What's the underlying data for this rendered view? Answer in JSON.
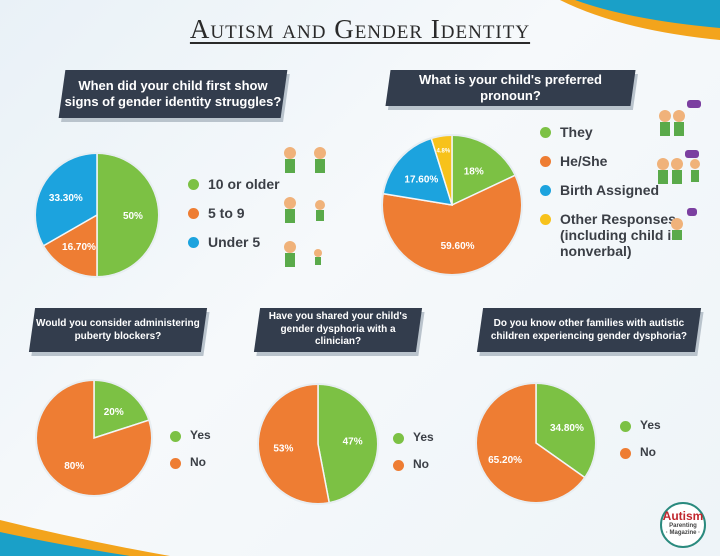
{
  "title": "Autism and Gender Identity",
  "colors": {
    "green": "#7cc144",
    "orange": "#ee7d33",
    "blue": "#1ca3de",
    "yellow": "#f7c21b",
    "banner": "#333d4d"
  },
  "chart_data": [
    {
      "type": "pie",
      "title": "When did your child first show signs of gender identity struggles?",
      "slices": [
        {
          "label": "10 or older",
          "value": 50,
          "text": "50%",
          "color": "#7cc144"
        },
        {
          "label": "5 to 9",
          "value": 16.7,
          "text": "16.70%",
          "color": "#ee7d33"
        },
        {
          "label": "Under 5",
          "value": 33.3,
          "text": "33.30%",
          "color": "#1ca3de"
        }
      ]
    },
    {
      "type": "pie",
      "title": "What is your child's preferred pronoun?",
      "slices": [
        {
          "label": "They",
          "value": 18,
          "text": "18%",
          "color": "#7cc144"
        },
        {
          "label": "He/She",
          "value": 59.6,
          "text": "59.60%",
          "color": "#ee7d33"
        },
        {
          "label": "Birth Assigned",
          "value": 17.6,
          "text": "17.60%",
          "color": "#1ca3de"
        },
        {
          "label": "Other Responses (including child is nonverbal)",
          "value": 4.8,
          "text": "4.8%",
          "color": "#f7c21b"
        }
      ]
    },
    {
      "type": "pie",
      "title": "Would you consider administering puberty blockers?",
      "slices": [
        {
          "label": "Yes",
          "value": 20,
          "text": "20%",
          "color": "#7cc144"
        },
        {
          "label": "No",
          "value": 80,
          "text": "80%",
          "color": "#ee7d33"
        }
      ]
    },
    {
      "type": "pie",
      "title": "Have you shared your child's gender dysphoria with a clinician?",
      "slices": [
        {
          "label": "Yes",
          "value": 47,
          "text": "47%",
          "color": "#7cc144"
        },
        {
          "label": "No",
          "value": 53,
          "text": "53%",
          "color": "#ee7d33"
        }
      ]
    },
    {
      "type": "pie",
      "title": "Do you know other families with autistic children experiencing gender dysphoria?",
      "slices": [
        {
          "label": "Yes",
          "value": 34.8,
          "text": "34.80%",
          "color": "#7cc144"
        },
        {
          "label": "No",
          "value": 65.2,
          "text": "65.20%",
          "color": "#ee7d33"
        }
      ]
    }
  ],
  "logo": {
    "name": "Autism",
    "sub": "Parenting",
    "tag": "Magazine"
  }
}
